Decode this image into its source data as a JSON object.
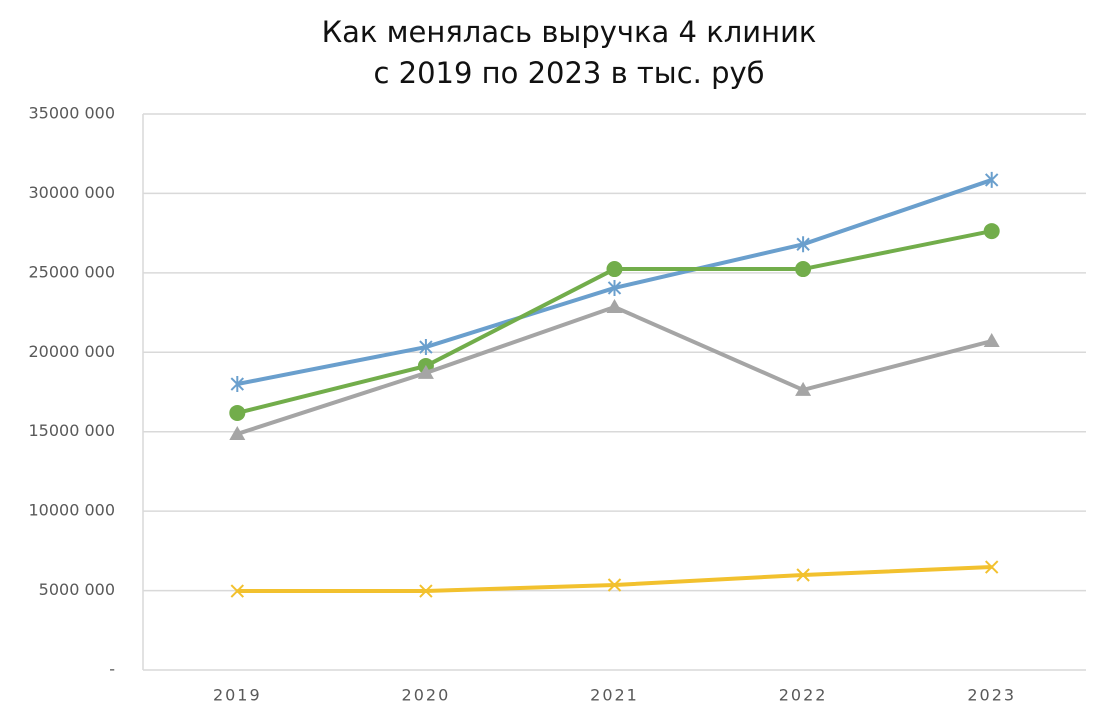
{
  "chart_data": {
    "type": "line",
    "title": [
      "Как менялась выручка 4 клиник",
      "с 2019 по 2023 в тыс. руб"
    ],
    "categories": [
      "2019",
      "2020",
      "2021",
      "2022",
      "2023"
    ],
    "series": [
      {
        "color": "#6a9fcd",
        "marker": "asterisk",
        "values": [
          18000000,
          20330000,
          24050000,
          26800000,
          30850000
        ]
      },
      {
        "color": "#72ad4b",
        "marker": "circle",
        "values": [
          16180000,
          19140000,
          25240000,
          25240000,
          27630000
        ]
      },
      {
        "color": "#a5a5a5",
        "marker": "triangle",
        "values": [
          14860000,
          18700000,
          22850000,
          17630000,
          20710000
        ]
      },
      {
        "color": "#f2c12e",
        "marker": "x",
        "values": [
          4970000,
          4970000,
          5350000,
          5980000,
          6480000
        ]
      }
    ],
    "ylim": [
      0,
      35000000
    ],
    "yticks": [
      {
        "value": 0,
        "label": "-"
      },
      {
        "value": 5000000,
        "label": "5000 000"
      },
      {
        "value": 10000000,
        "label": "10000 000"
      },
      {
        "value": 15000000,
        "label": "15000 000"
      },
      {
        "value": 20000000,
        "label": "20000 000"
      },
      {
        "value": 25000000,
        "label": "25000 000"
      },
      {
        "value": 30000000,
        "label": "30000 000"
      },
      {
        "value": 35000000,
        "label": "35000 000"
      }
    ],
    "grid": true
  }
}
